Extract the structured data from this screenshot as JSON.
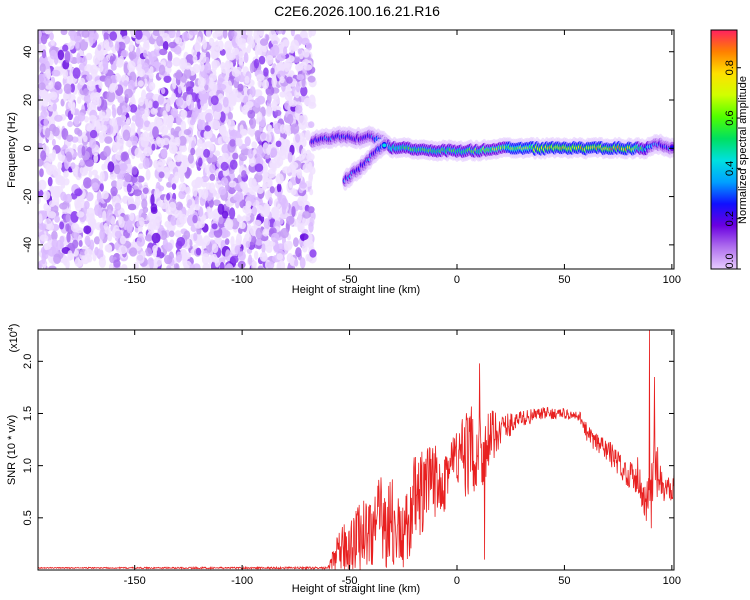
{
  "title": "C2E6.2026.100.16.21.R16",
  "chart_data": [
    {
      "type": "heatmap",
      "title": "C2E6.2026.100.16.21.R16",
      "xlabel": "Height of straight line (km)",
      "ylabel": "Frequency (Hz)",
      "xlim": [
        -195,
        101
      ],
      "ylim": [
        -50,
        49
      ],
      "xticks": [
        -150,
        -100,
        -50,
        0,
        50,
        100
      ],
      "yticks": [
        -40,
        -20,
        0,
        20,
        40
      ],
      "colorbar": {
        "label": "Normalized spectral amplitude",
        "range": [
          0.0,
          0.95
        ],
        "ticks": [
          "0.0",
          "0.2",
          "0.4",
          "0.6",
          "0.8"
        ],
        "tick_values": [
          0.0,
          0.2,
          0.4,
          0.6,
          0.8
        ],
        "colors": [
          "#e8ccff",
          "#b070ee",
          "#6a00e0",
          "#1010ff",
          "#00a0ff",
          "#00e0e0",
          "#00e060",
          "#50ff00",
          "#d0ff00",
          "#ffe000",
          "#ff8000",
          "#ff2060"
        ]
      },
      "noise_region": {
        "x_from": -195,
        "x_to": -67,
        "amplitude": 0.08
      },
      "ridge": [
        {
          "x": -67,
          "f": 3,
          "amp": 0.22
        },
        {
          "x": -60,
          "f": 4,
          "amp": 0.28
        },
        {
          "x": -52,
          "f": 5,
          "amp": 0.26
        },
        {
          "x": -45,
          "f": 4,
          "amp": 0.22
        },
        {
          "x": -40,
          "f": 5,
          "amp": 0.28
        },
        {
          "x": -35,
          "f": 3,
          "amp": 0.35
        },
        {
          "x": -30,
          "f": 0,
          "amp": 0.45
        },
        {
          "x": -20,
          "f": 0,
          "amp": 0.55
        },
        {
          "x": -10,
          "f": -1,
          "amp": 0.5
        },
        {
          "x": 0,
          "f": -1,
          "amp": 0.55
        },
        {
          "x": 10,
          "f": -1,
          "amp": 0.55
        },
        {
          "x": 20,
          "f": 0,
          "amp": 0.6
        },
        {
          "x": 30,
          "f": 0,
          "amp": 0.65
        },
        {
          "x": 40,
          "f": 0,
          "amp": 0.7
        },
        {
          "x": 50,
          "f": 0,
          "amp": 0.72
        },
        {
          "x": 60,
          "f": 0,
          "amp": 0.72
        },
        {
          "x": 70,
          "f": 0,
          "amp": 0.75
        },
        {
          "x": 80,
          "f": 0,
          "amp": 0.8
        },
        {
          "x": 88,
          "f": 0,
          "amp": 0.4
        },
        {
          "x": 92,
          "f": 2,
          "amp": 0.3
        },
        {
          "x": 101,
          "f": 0,
          "amp": 0.3
        }
      ],
      "secondary_branch": [
        {
          "x": -52,
          "f": -13,
          "amp": 0.3
        },
        {
          "x": -45,
          "f": -8,
          "amp": 0.25
        },
        {
          "x": -38,
          "f": -2,
          "amp": 0.3
        },
        {
          "x": -33,
          "f": 2,
          "amp": 0.35
        }
      ]
    },
    {
      "type": "line",
      "xlabel": "Height of straight line (km)",
      "ylabel": "SNR (10 * v/v)",
      "multiplier_label": "(x10",
      "multiplier_exponent": "4",
      "multiplier_close": ")",
      "xlim": [
        -195,
        101
      ],
      "ylim": [
        0,
        2.3
      ],
      "xticks": [
        -150,
        -100,
        -50,
        0,
        50,
        100
      ],
      "yticks": [
        0.5,
        1.0,
        1.5,
        2.0
      ],
      "ytick_labels": [
        "0.5",
        "1.0",
        "1.5",
        "2.0"
      ],
      "series": [
        {
          "name": "SNR",
          "color": "#e82020",
          "envelope": [
            {
              "x": -195,
              "base": 0.02,
              "noise": 0.005
            },
            {
              "x": -60,
              "base": 0.02,
              "noise": 0.01
            },
            {
              "x": -57,
              "base": 0.12,
              "noise": 0.15
            },
            {
              "x": -50,
              "base": 0.25,
              "noise": 0.3
            },
            {
              "x": -40,
              "base": 0.4,
              "noise": 0.4
            },
            {
              "x": -32,
              "base": 0.5,
              "noise": 0.5
            },
            {
              "x": -25,
              "base": 0.3,
              "noise": 0.3
            },
            {
              "x": -20,
              "base": 0.65,
              "noise": 0.45
            },
            {
              "x": -10,
              "base": 0.85,
              "noise": 0.4
            },
            {
              "x": 0,
              "base": 1.05,
              "noise": 0.35
            },
            {
              "x": 8,
              "base": 1.15,
              "noise": 0.45
            },
            {
              "x": 14,
              "base": 1.2,
              "noise": 0.35
            },
            {
              "x": 20,
              "base": 1.35,
              "noise": 0.15
            },
            {
              "x": 30,
              "base": 1.45,
              "noise": 0.08
            },
            {
              "x": 40,
              "base": 1.5,
              "noise": 0.06
            },
            {
              "x": 50,
              "base": 1.5,
              "noise": 0.05
            },
            {
              "x": 58,
              "base": 1.45,
              "noise": 0.06
            },
            {
              "x": 62,
              "base": 1.25,
              "noise": 0.12
            },
            {
              "x": 70,
              "base": 1.15,
              "noise": 0.12
            },
            {
              "x": 78,
              "base": 0.95,
              "noise": 0.12
            },
            {
              "x": 85,
              "base": 0.85,
              "noise": 0.15
            },
            {
              "x": 88,
              "base": 0.6,
              "noise": 0.25
            },
            {
              "x": 92,
              "base": 1.0,
              "noise": 0.35
            },
            {
              "x": 96,
              "base": 0.75,
              "noise": 0.12
            },
            {
              "x": 101,
              "base": 0.8,
              "noise": 0.12
            }
          ],
          "spikes": [
            {
              "x": 10.5,
              "y": 1.98
            },
            {
              "x": 12.8,
              "y": 0.1
            },
            {
              "x": -0.5,
              "y": 1.2
            },
            {
              "x": 89.5,
              "y": 2.3
            },
            {
              "x": 92,
              "y": 1.85
            },
            {
              "x": 90.5,
              "y": 0.4
            },
            {
              "x": 84,
              "y": 1.08
            },
            {
              "x": 101,
              "y": 0.95
            }
          ]
        }
      ]
    }
  ]
}
